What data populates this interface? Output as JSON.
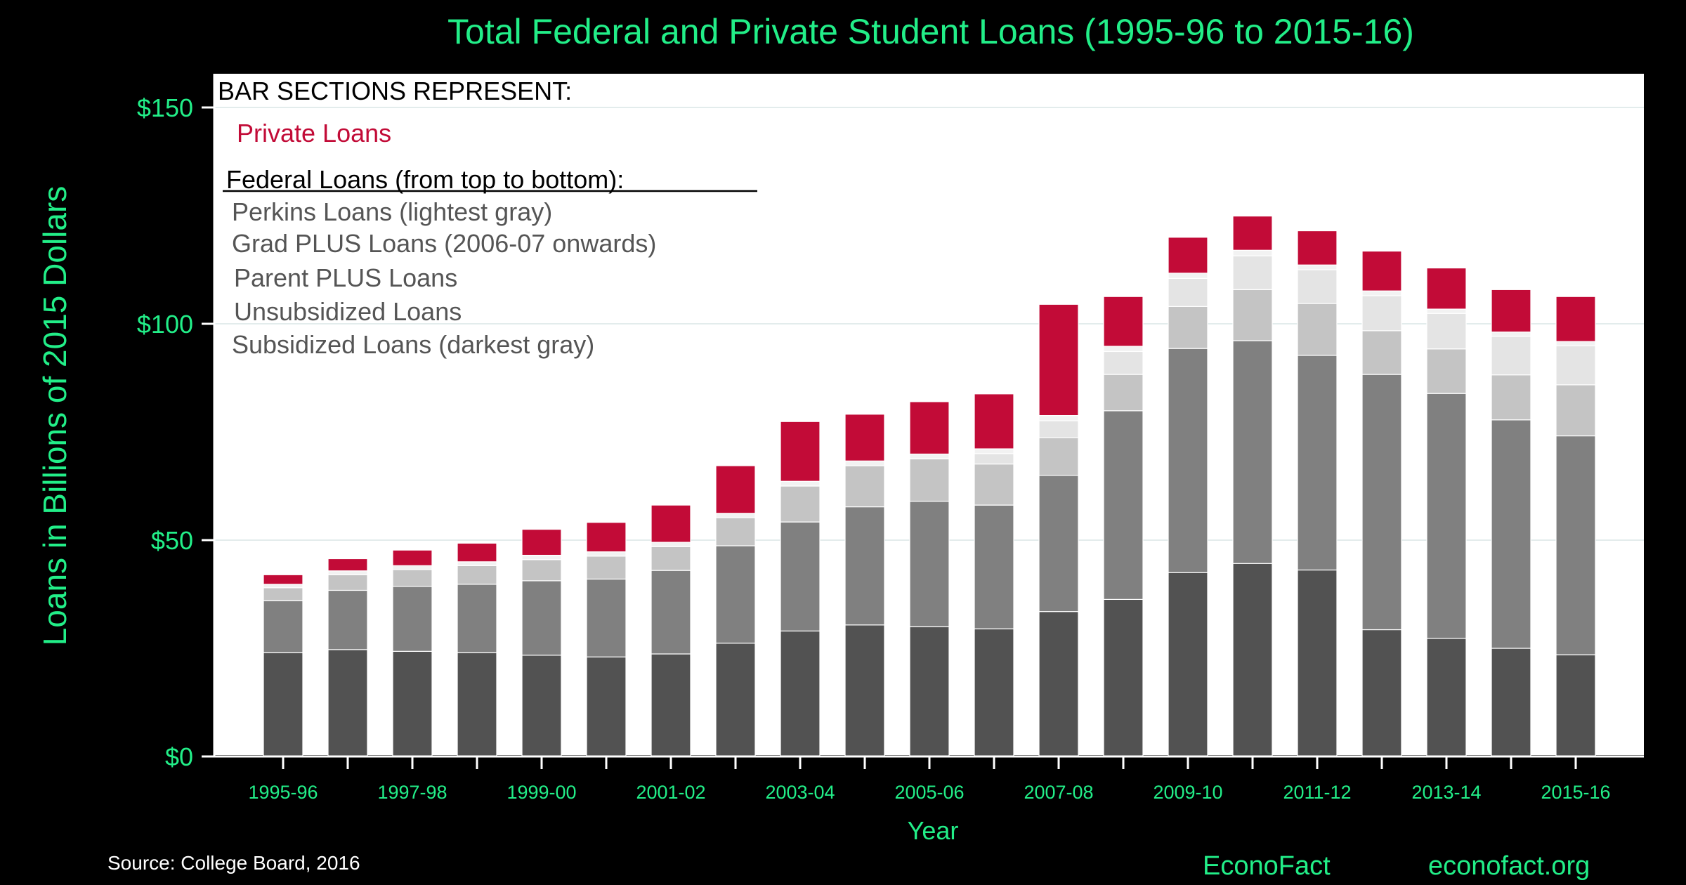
{
  "chart_data": {
    "type": "bar",
    "stacked": true,
    "title": "Total Federal and Private Student Loans (1995-96 to 2015-16)",
    "xlabel": "Year",
    "ylabel": "Loans in Billions of 2015 Dollars",
    "ylim": [
      0,
      155
    ],
    "yticks": [
      0,
      50,
      100,
      150
    ],
    "ytick_labels": [
      "$0",
      "$50",
      "$100",
      "$150"
    ],
    "grid": true,
    "categories": [
      "1995-96",
      "1996-97",
      "1997-98",
      "1998-99",
      "1999-00",
      "2000-01",
      "2001-02",
      "2002-03",
      "2003-04",
      "2004-05",
      "2005-06",
      "2006-07",
      "2007-08",
      "2008-09",
      "2009-10",
      "2010-11",
      "2011-12",
      "2012-13",
      "2013-14",
      "2014-15",
      "2015-16"
    ],
    "xtick_labels": [
      "1995-96",
      "1997-98",
      "1999-00",
      "2001-02",
      "2003-04",
      "2005-06",
      "2007-08",
      "2009-10",
      "2011-12",
      "2013-14",
      "2015-16"
    ],
    "series": [
      {
        "name": "Subsidized Loans (darkest gray)",
        "color": "#525252",
        "values": [
          24,
          24.7,
          24.3,
          24,
          23.4,
          23,
          23.7,
          26.2,
          29,
          30.4,
          30,
          29.5,
          33.5,
          36.3,
          42.5,
          44.6,
          43.1,
          29.3,
          27.3,
          25,
          23.5
        ]
      },
      {
        "name": "Unsubsidized Loans",
        "color": "#808080",
        "values": [
          12,
          13.7,
          15,
          15.8,
          17.2,
          18,
          19.3,
          22.5,
          25.2,
          27.3,
          29,
          28.6,
          31.5,
          43.6,
          51.8,
          51.5,
          49.6,
          59,
          56.6,
          52.8,
          50.6
        ]
      },
      {
        "name": "Parent PLUS Loans",
        "color": "#c4c4c4",
        "values": [
          3,
          3.6,
          3.9,
          4.3,
          4.9,
          5.3,
          5.5,
          6.5,
          8.3,
          9.5,
          9.8,
          9.5,
          8.7,
          8.4,
          9.7,
          11.8,
          12,
          10.1,
          10.3,
          10.4,
          11.8
        ]
      },
      {
        "name": "Grad PLUS Loans (2006-07 onwards)",
        "color": "#e4e4e4",
        "values": [
          0,
          0,
          0,
          0,
          0,
          0,
          0,
          0,
          0,
          0,
          0,
          2.4,
          3.9,
          5.3,
          6.5,
          7.8,
          7.8,
          8.1,
          8.2,
          8.9,
          9
        ]
      },
      {
        "name": "Perkins Loans (lightest gray)",
        "color": "#f2f2f2",
        "values": [
          0.8,
          0.9,
          0.9,
          0.9,
          1,
          1,
          1,
          1,
          1.1,
          1.1,
          1.1,
          1.1,
          1.2,
          1.2,
          1.2,
          1.3,
          1.1,
          1.1,
          1,
          1,
          1
        ]
      },
      {
        "name": "Private Loans",
        "color": "#c20b37",
        "values": [
          2.2,
          2.8,
          3.6,
          4.3,
          6,
          6.8,
          8.6,
          11,
          13.8,
          10.8,
          12.1,
          12.7,
          25.7,
          11.5,
          8.3,
          7.9,
          7.9,
          9.2,
          9.5,
          9.8,
          10.4
        ]
      }
    ]
  },
  "legend": {
    "heading": "BAR SECTIONS REPRESENT:",
    "private": "Private Loans",
    "federal_heading": "Federal Loans (from top to bottom):",
    "items": [
      "Perkins Loans (lightest gray)",
      "Grad PLUS Loans (2006-07 onwards)",
      "Parent PLUS Loans",
      "Unsubsidized Loans",
      "Subsidized Loans (darkest gray)"
    ]
  },
  "footer": {
    "source": "Source: College Board, 2016",
    "brand": "EconoFact",
    "url": "econofact.org"
  },
  "colors": {
    "accent": "#22ee88",
    "private": "#c20b37",
    "background": "#000000",
    "plot_background": "#ffffff"
  }
}
